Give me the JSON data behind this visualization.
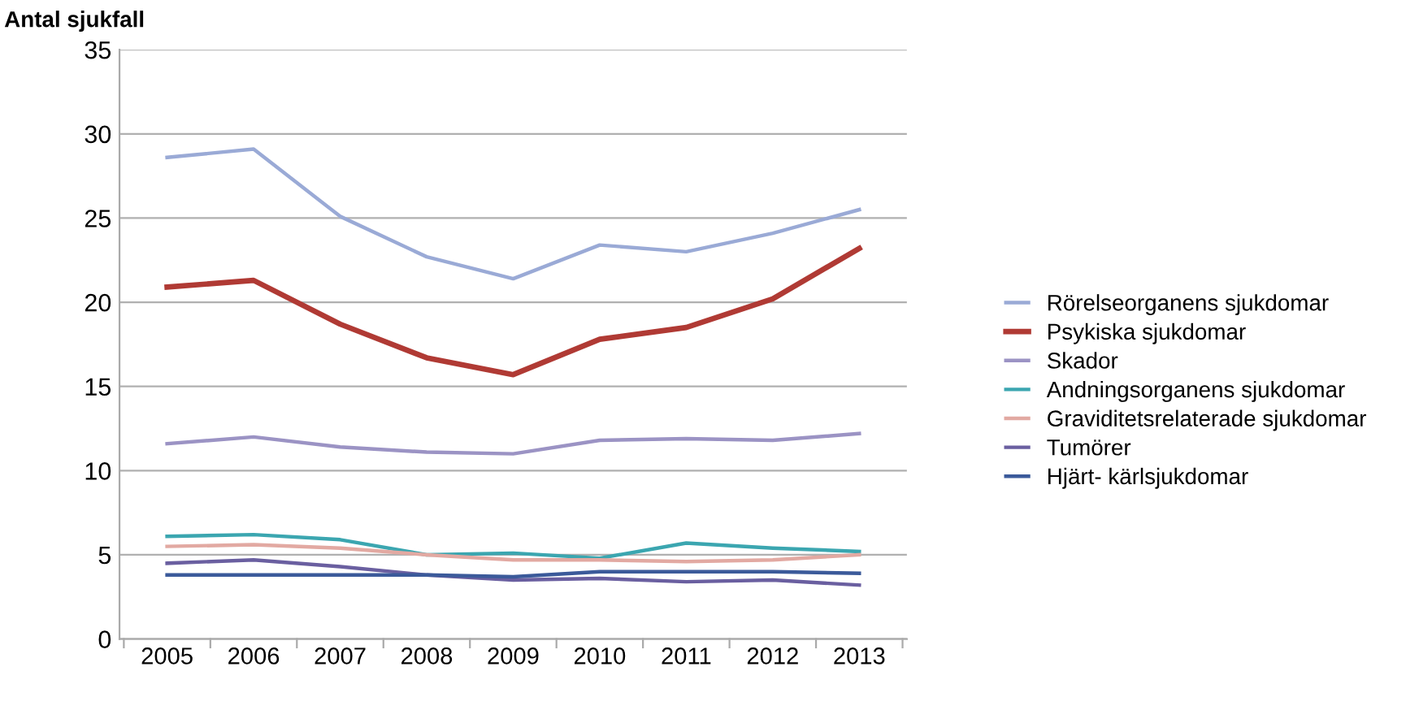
{
  "chart_data": {
    "type": "line",
    "ylabel": "Antal sjukfall",
    "categories": [
      "2005",
      "2006",
      "2007",
      "2008",
      "2009",
      "2010",
      "2011",
      "2012",
      "2013"
    ],
    "series": [
      {
        "name": "Rörelseorganens sjukdomar",
        "color": "#9aaad6",
        "values": [
          28.6,
          29.1,
          25.1,
          22.7,
          21.4,
          23.4,
          23.0,
          24.1,
          25.5
        ]
      },
      {
        "name": "Psykiska sjukdomar",
        "color": "#b03a34",
        "values": [
          20.9,
          21.3,
          18.7,
          16.7,
          15.7,
          17.8,
          18.5,
          20.2,
          23.2
        ]
      },
      {
        "name": "Skador",
        "color": "#9b93c4",
        "values": [
          11.6,
          12.0,
          11.4,
          11.1,
          11.0,
          11.8,
          11.9,
          11.8,
          12.2
        ]
      },
      {
        "name": "Andningsorganens sjukdomar",
        "color": "#3ba6b0",
        "values": [
          6.1,
          6.2,
          5.9,
          5.0,
          5.1,
          4.8,
          5.7,
          5.4,
          5.2
        ]
      },
      {
        "name": "Graviditetsrelaterade sjukdomar",
        "color": "#e2a9a2",
        "values": [
          5.5,
          5.6,
          5.4,
          5.0,
          4.7,
          4.7,
          4.6,
          4.7,
          5.0
        ]
      },
      {
        "name": "Tumörer",
        "color": "#6a5fa0",
        "values": [
          4.5,
          4.7,
          4.3,
          3.8,
          3.5,
          3.6,
          3.4,
          3.5,
          3.2
        ]
      },
      {
        "name": "Hjärt- kärlsjukdomar",
        "color": "#3b5a9a",
        "values": [
          3.8,
          3.8,
          3.8,
          3.8,
          3.7,
          4.0,
          4.0,
          4.0,
          3.9
        ]
      }
    ],
    "ylim": [
      0,
      35
    ],
    "yticks": [
      0,
      5,
      10,
      15,
      20,
      25,
      30,
      35
    ],
    "grid": "y",
    "legend": "right",
    "marker": "none",
    "line_style": "solid"
  }
}
